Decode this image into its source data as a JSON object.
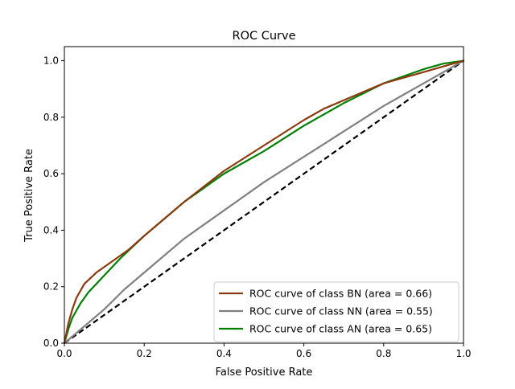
{
  "chart_data": {
    "type": "line",
    "title": "ROC Curve",
    "xlabel": "False Positive Rate",
    "ylabel": "True Positive Rate",
    "xlim": [
      0,
      1
    ],
    "ylim": [
      0,
      1.05
    ],
    "xticks": [
      "0.0",
      "0.2",
      "0.4",
      "0.6",
      "0.8",
      "1.0"
    ],
    "yticks": [
      "0.0",
      "0.2",
      "0.4",
      "0.6",
      "0.8",
      "1.0"
    ],
    "grid": false,
    "legend_position": "lower-right",
    "series": [
      {
        "name": "ROC curve of class BN (area = 0.66)",
        "color": "#8B3A0F",
        "x": [
          0,
          0.01,
          0.02,
          0.03,
          0.05,
          0.08,
          0.12,
          0.16,
          0.2,
          0.3,
          0.4,
          0.5,
          0.6,
          0.65,
          0.7,
          0.8,
          0.9,
          0.95,
          1.0
        ],
        "y": [
          0,
          0.07,
          0.12,
          0.16,
          0.21,
          0.25,
          0.29,
          0.33,
          0.38,
          0.5,
          0.61,
          0.7,
          0.79,
          0.83,
          0.86,
          0.92,
          0.96,
          0.98,
          1.0
        ]
      },
      {
        "name": "ROC curve of class NN (area = 0.55)",
        "color": "#808080",
        "x": [
          0,
          0.05,
          0.1,
          0.15,
          0.2,
          0.3,
          0.4,
          0.5,
          0.6,
          0.7,
          0.8,
          0.9,
          1.0
        ],
        "y": [
          0,
          0.06,
          0.12,
          0.19,
          0.25,
          0.37,
          0.47,
          0.57,
          0.66,
          0.75,
          0.84,
          0.92,
          1.0
        ]
      },
      {
        "name": "ROC curve of class AN (area = 0.65)",
        "color": "#008000",
        "x": [
          0,
          0.01,
          0.02,
          0.04,
          0.06,
          0.1,
          0.14,
          0.2,
          0.3,
          0.4,
          0.5,
          0.6,
          0.7,
          0.8,
          0.9,
          0.95,
          1.0
        ],
        "y": [
          0,
          0.05,
          0.09,
          0.14,
          0.18,
          0.24,
          0.3,
          0.38,
          0.5,
          0.6,
          0.68,
          0.77,
          0.85,
          0.92,
          0.97,
          0.99,
          1.0
        ]
      }
    ],
    "reference_line": {
      "color": "#000000",
      "style": "dashed",
      "x": [
        0,
        1
      ],
      "y": [
        0,
        1
      ]
    }
  }
}
